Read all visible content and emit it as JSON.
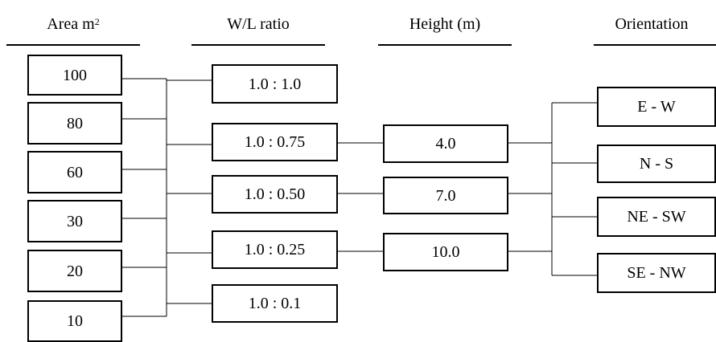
{
  "headers": {
    "area": "Area m",
    "area_sup": "2",
    "wl": "W/L ratio",
    "height": "Height (m)",
    "orientation": "Orientation"
  },
  "area": [
    "100",
    "80",
    "60",
    "30",
    "20",
    "10"
  ],
  "wl": [
    "1.0 : 1.0",
    "1.0 : 0.75",
    "1.0 : 0.50",
    "1.0 : 0.25",
    "1.0 : 0.1"
  ],
  "height": [
    "4.0",
    "7.0",
    "10.0"
  ],
  "orientation": [
    "E - W",
    "N - S",
    "NE - SW",
    "SE - NW"
  ]
}
